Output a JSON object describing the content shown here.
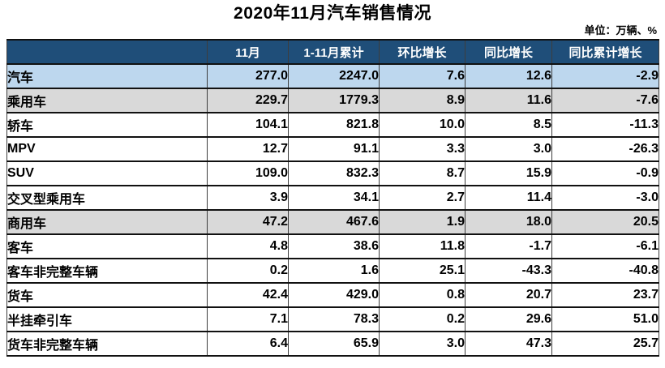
{
  "colors": {
    "header_bg": "#1F4E79",
    "header_text": "#FFFFFF",
    "total_row_bg": "#BDD7EE",
    "subtotal_row_bg": "#D9D9D9",
    "body_text": "#000000"
  },
  "chart_data": {
    "type": "table",
    "title": "2020年11月汽车销售情况",
    "unit_note": "单位：万辆、%",
    "columns": [
      "",
      "11月",
      "1-11月累计",
      "环比增长",
      "同比增长",
      "同比累计增长"
    ],
    "rows": [
      {
        "label": "汽车",
        "indent": 0,
        "style": "total",
        "values": [
          "277.0",
          "2247.0",
          "7.6",
          "12.6",
          "-2.9"
        ]
      },
      {
        "label": "乘用车",
        "indent": 1,
        "style": "subtotal",
        "values": [
          "229.7",
          "1779.3",
          "8.9",
          "11.6",
          "-7.6"
        ]
      },
      {
        "label": "轿车",
        "indent": 2,
        "style": "normal",
        "values": [
          "104.1",
          "821.8",
          "10.0",
          "8.5",
          "-11.3"
        ]
      },
      {
        "label": "MPV",
        "indent": 2,
        "style": "normal",
        "values": [
          "12.7",
          "91.1",
          "3.3",
          "3.0",
          "-26.3"
        ]
      },
      {
        "label": "SUV",
        "indent": 2,
        "style": "normal",
        "values": [
          "109.0",
          "832.3",
          "8.7",
          "15.9",
          "-0.9"
        ]
      },
      {
        "label": "交叉型乘用车",
        "indent": 2,
        "style": "normal",
        "values": [
          "3.9",
          "34.1",
          "2.7",
          "11.4",
          "-3.0"
        ]
      },
      {
        "label": "商用车",
        "indent": 1,
        "style": "subtotal",
        "values": [
          "47.2",
          "467.6",
          "1.9",
          "18.0",
          "20.5"
        ]
      },
      {
        "label": "客车",
        "indent": 2,
        "style": "normal",
        "values": [
          "4.8",
          "38.6",
          "11.8",
          "-1.7",
          "-6.1"
        ]
      },
      {
        "label": "客车非完整车辆",
        "indent": 3,
        "style": "normal",
        "values": [
          "0.2",
          "1.6",
          "25.1",
          "-43.3",
          "-40.8"
        ]
      },
      {
        "label": "货车",
        "indent": 2,
        "style": "normal",
        "values": [
          "42.4",
          "429.0",
          "0.8",
          "20.7",
          "23.7"
        ]
      },
      {
        "label": "半挂牵引车",
        "indent": 3,
        "style": "normal",
        "values": [
          "7.1",
          "78.3",
          "0.2",
          "29.6",
          "51.0"
        ]
      },
      {
        "label": "货车非完整车辆",
        "indent": 3,
        "style": "normal",
        "values": [
          "6.4",
          "65.9",
          "3.0",
          "47.3",
          "25.7"
        ]
      }
    ]
  }
}
